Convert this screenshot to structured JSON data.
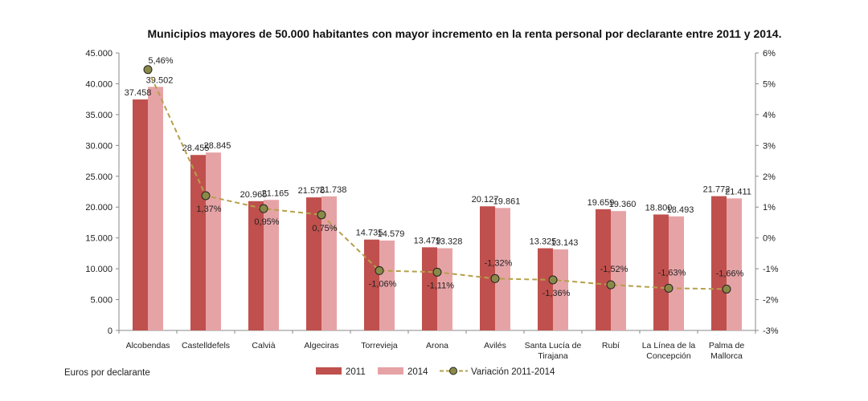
{
  "chart_data": {
    "type": "bar",
    "title": "Municipios mayores de 50.000 habitantes  con mayor incremento en la renta personal por declarante entre 2011 y 2014.",
    "note": "Euros por declarante",
    "categories": [
      [
        "Alcobendas"
      ],
      [
        "Castelldefels"
      ],
      [
        "Calvià"
      ],
      [
        "Algeciras"
      ],
      [
        "Torrevieja"
      ],
      [
        "Arona"
      ],
      [
        "Avilés"
      ],
      [
        "Santa Lucía de",
        "Tirajana"
      ],
      [
        "Rubí"
      ],
      [
        "La Línea de la",
        "Concepción"
      ],
      [
        "Palma de",
        "Mallorca"
      ]
    ],
    "series": [
      {
        "name": "2011",
        "type": "bar",
        "axis": "left",
        "color": "#c0504d",
        "values": [
          37458,
          28455,
          20965,
          21576,
          14735,
          13479,
          20127,
          13325,
          19659,
          18800,
          21772
        ],
        "labels": [
          "37.458",
          "28.455",
          "20.965",
          "21.576",
          "14.735",
          "13.479",
          "20.127",
          "13.325",
          "19.659",
          "18.800",
          "21.772"
        ]
      },
      {
        "name": "2014",
        "type": "bar",
        "axis": "right-pair",
        "color": "#e6a3a6",
        "values": [
          39502,
          28845,
          21165,
          21738,
          14579,
          13328,
          19861,
          13143,
          19360,
          18493,
          21411
        ],
        "labels": [
          "39.502",
          "28.845",
          "21.165",
          "21.738",
          "14.579",
          "13.328",
          "19.861",
          "13.143",
          "19.360",
          "18.493",
          "21.411"
        ]
      },
      {
        "name": "Variación 2011-2014",
        "type": "line",
        "axis": "right",
        "color": "#b5a04a",
        "marker_color": "#8a8a48",
        "values": [
          5.46,
          1.37,
          0.95,
          0.75,
          -1.06,
          -1.11,
          -1.32,
          -1.36,
          -1.52,
          -1.63,
          -1.66
        ],
        "labels": [
          "5,46%",
          "1,37%",
          "0,95%",
          "0,75%",
          "-1,06%",
          "-1,11%",
          "-1,32%",
          "-1,36%",
          "-1,52%",
          "-1,63%",
          "-1,66%"
        ]
      }
    ],
    "y_left": {
      "min": 0,
      "max": 45000,
      "ticks": [
        "0",
        "5.000",
        "10.000",
        "15.000",
        "20.000",
        "25.000",
        "30.000",
        "35.000",
        "40.000",
        "45.000"
      ]
    },
    "y_right": {
      "min": -3,
      "max": 6,
      "ticks": [
        "-3%",
        "-2%",
        "-1%",
        "0%",
        "1%",
        "2%",
        "3%",
        "4%",
        "5%",
        "6%"
      ]
    },
    "grid": false,
    "legend_position": "bottom"
  }
}
